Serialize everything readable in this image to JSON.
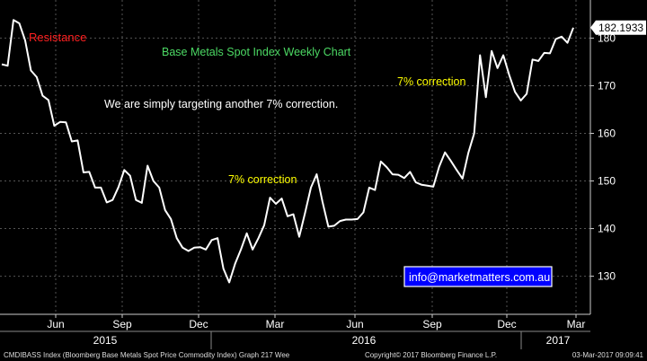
{
  "chart_data": {
    "type": "line",
    "title": "Base Metals Spot Index Weekly Chart",
    "ylim": [
      122,
      188
    ],
    "yticks": [
      130,
      140,
      150,
      160,
      170,
      180
    ],
    "last_value_label": "182.1933",
    "x_month_labels": [
      "Jun",
      "Sep",
      "Dec",
      "Mar",
      "Jun",
      "Sep",
      "Dec",
      "Mar"
    ],
    "x_year_labels": [
      "2015",
      "2016",
      "2017"
    ],
    "series": [
      {
        "values": [
          174.5,
          174.2,
          183.8,
          183.1,
          179.5,
          173.2,
          171.8,
          167.9,
          167.0,
          161.6,
          162.4,
          162.3,
          158.3,
          158.5,
          151.8,
          151.9,
          148.6,
          148.6,
          145.5,
          146.0,
          148.7,
          152.3,
          151.1,
          146.0,
          145.4,
          153.2,
          150.0,
          148.6,
          143.9,
          142.0,
          138.0,
          136.0,
          135.3,
          136.0,
          136.1,
          135.6,
          137.6,
          138.0,
          131.6,
          128.7,
          132.6,
          135.6,
          139.0,
          135.6,
          138.0,
          140.7,
          146.5,
          145.2,
          146.3,
          142.6,
          143.0,
          138.3,
          143.3,
          148.6,
          151.4,
          145.6,
          140.4,
          140.6,
          141.6,
          141.9,
          141.9,
          142.0,
          143.4,
          148.6,
          148.1,
          154.1,
          152.9,
          151.4,
          151.3,
          150.6,
          151.9,
          149.7,
          149.2,
          149.0,
          148.8,
          153.0,
          156.0,
          154.2,
          152.3,
          150.5,
          155.9,
          160.0,
          176.4,
          167.6,
          177.3,
          173.7,
          176.4,
          172.3,
          168.7,
          166.9,
          168.3,
          175.5,
          175.2,
          176.9,
          176.8,
          179.8,
          180.3,
          179.0,
          182.2
        ]
      }
    ],
    "annotations": [
      {
        "text": "Resistance",
        "color": "#ff2020"
      },
      {
        "text": "We are simply targeting another 7% correction.",
        "color": "#ffffff"
      },
      {
        "text": "7% correction",
        "color": "#ffff00"
      },
      {
        "text": "7% correction",
        "color": "#ffff00"
      },
      {
        "text": "info@marketmatters.com.au",
        "color": "#ffffff"
      }
    ]
  },
  "footer": {
    "left": "CMDIBASS Index (Bloomberg Base Metals Spot Price Commodity Index) Graph 217  Wee",
    "center": "Copyright© 2017 Bloomberg Finance L.P.",
    "right": "03-Mar-2017 09:09:41"
  },
  "colors": {
    "background": "#000000",
    "line": "#ffffff",
    "title": "#4cd964",
    "resistance": "#ff2020",
    "correction": "#ffff00",
    "email_box": "#0000ff",
    "grid": "#555555",
    "value_label_bg": "#ffffff"
  }
}
